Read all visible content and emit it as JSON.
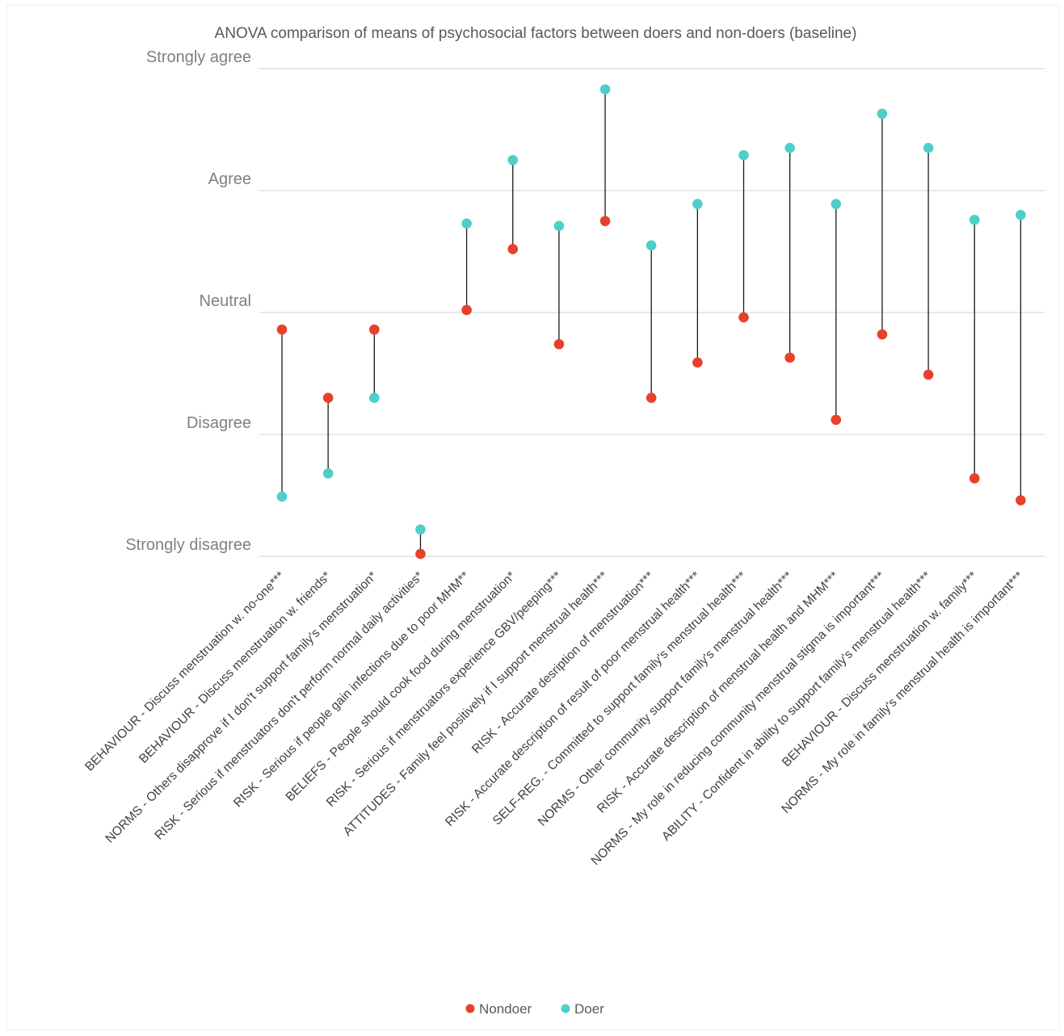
{
  "chart_data": {
    "type": "dot-range",
    "title": "ANOVA comparison of means of psychosocial factors between doers and non-doers (baseline)",
    "y_tick_labels": [
      "Strongly disagree",
      "Disagree",
      "Neutral",
      "Agree",
      "Strongly agree"
    ],
    "ylim": [
      1,
      5
    ],
    "grid": true,
    "legend_position": "bottom",
    "categories": [
      "BEHAVIOUR - Discuss menstruation w. no-one***",
      "BEHAVIOUR - Discuss menstruation w. friends*",
      "NORMS - Others disapprove if I don't support family's menstruation*",
      "RISK - Serious if menstruators don't perform normal daily activities*",
      "RISK - Serious if people gain infections due to poor MHM**",
      "BELIEFS - People should cook food during menstruation*",
      "RISK - Serious if menstruators experience GBV/peeping***",
      "ATTITUDES - Family feel positively if I support menstrual health***",
      "RISK - Accurate desription of menstruation***",
      "RISK - Accurate description of result of poor menstrual health***",
      "SELF-REG. - Committed to support family's menstrual health***",
      "NORMS - Other community support family's menstrual health***",
      "RISK - Accurate description of menstrual health and MHM***",
      "NORMS - My role in reducing community menstrual stigma is important***",
      "ABILITY - Confident in ability to support family's menstrual health***",
      "BEHAVIOUR - Discuss menstruation w. family***",
      "NORMS - My role in family's menstrual health is important***"
    ],
    "series": [
      {
        "name": "Nondoer",
        "color": "#e8412b",
        "values": [
          2.86,
          2.3,
          2.86,
          1.02,
          3.02,
          3.52,
          2.74,
          3.75,
          2.3,
          2.59,
          2.96,
          2.63,
          2.12,
          2.82,
          2.49,
          1.64,
          1.46
        ]
      },
      {
        "name": "Doer",
        "color": "#4fcfc9",
        "values": [
          1.49,
          1.68,
          2.3,
          1.22,
          3.73,
          4.25,
          3.71,
          4.83,
          3.55,
          3.89,
          4.29,
          4.35,
          3.89,
          4.63,
          4.35,
          3.76,
          3.8
        ]
      }
    ]
  }
}
